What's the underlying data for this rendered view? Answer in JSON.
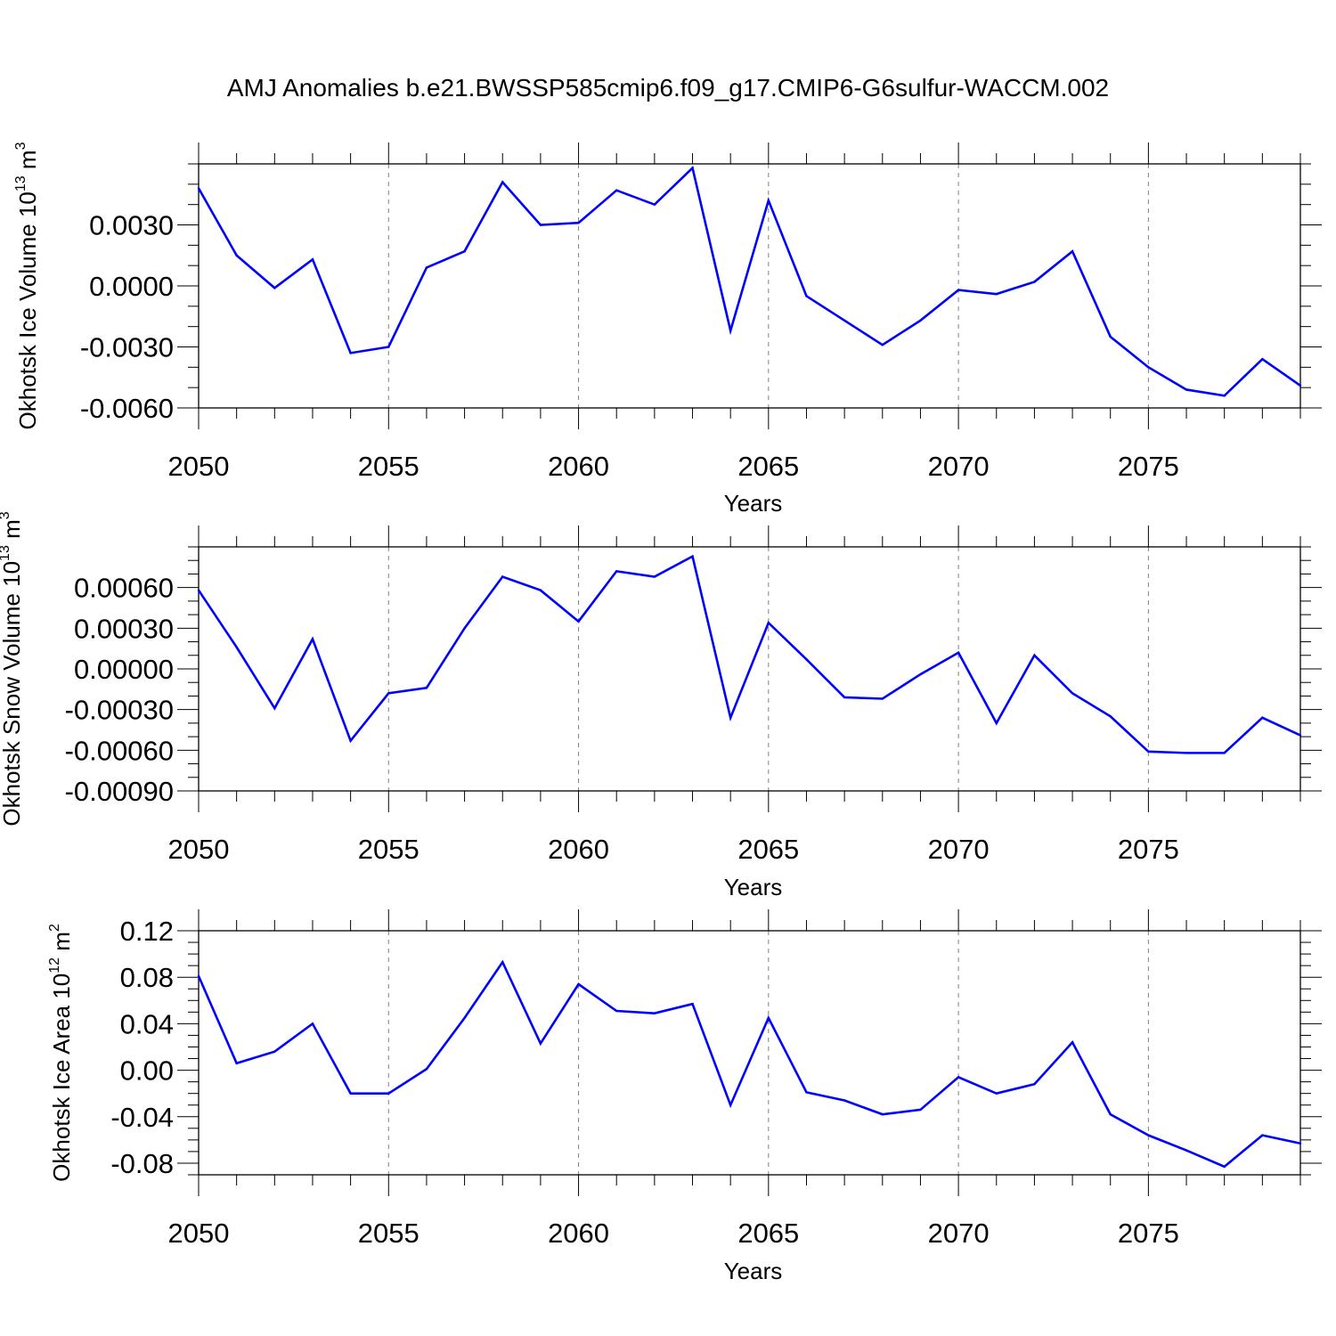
{
  "title": "AMJ Anomalies b.e21.BWSSP585cmip6.f09_g17.CMIP6-G6sulfur-WACCM.002",
  "colors": {
    "line": "#0000ff",
    "axis": "#000000",
    "grid": "#7f7f7f"
  },
  "chart_data": [
    {
      "type": "line",
      "ylabel": {
        "text": "Okhotsk Ice Volume 10",
        "sup": "13",
        "unit": " m",
        "unit_sup": "3"
      },
      "xlabel": "Years",
      "xlim": [
        2050,
        2079
      ],
      "ylim": [
        -0.006,
        0.006
      ],
      "yticks": [
        -0.006,
        -0.003,
        0.0,
        0.003
      ],
      "ytick_labels": [
        "-0.0060",
        "-0.0030",
        "0.0000",
        "0.0030"
      ],
      "yminor_step": 0.001,
      "xticks": [
        2050,
        2055,
        2060,
        2065,
        2070,
        2075
      ],
      "xtick_labels": [
        "2050",
        "2055",
        "2060",
        "2065",
        "2070",
        "2075"
      ],
      "grid_x": [
        2055,
        2060,
        2065,
        2070,
        2075
      ],
      "series": [
        {
          "x": [
            2050,
            2051,
            2052,
            2053,
            2054,
            2055,
            2056,
            2057,
            2058,
            2059,
            2060,
            2061,
            2062,
            2063,
            2064,
            2065,
            2066,
            2067,
            2068,
            2069,
            2070,
            2071,
            2072,
            2073,
            2074,
            2075,
            2076,
            2077,
            2078,
            2079
          ],
          "values": [
            0.0048,
            0.0015,
            -0.0001,
            0.0013,
            -0.0033,
            -0.003,
            0.0009,
            0.0017,
            0.0051,
            0.003,
            0.0031,
            0.0047,
            0.004,
            0.0058,
            -0.0022,
            0.0042,
            -0.0005,
            -0.0017,
            -0.0029,
            -0.0017,
            -0.0002,
            -0.0004,
            0.0002,
            0.0017,
            -0.0025,
            -0.004,
            -0.0051,
            -0.0054,
            -0.0036,
            -0.0049
          ]
        }
      ]
    },
    {
      "type": "line",
      "ylabel": {
        "text": "Okhotsk Snow Volume 10",
        "sup": "13",
        "unit": " m",
        "unit_sup": "3"
      },
      "xlabel": "Years",
      "xlim": [
        2050,
        2079
      ],
      "ylim": [
        -0.0009,
        0.0009
      ],
      "yticks": [
        -0.0009,
        -0.0006,
        -0.0003,
        0.0,
        0.0003,
        0.0006
      ],
      "ytick_labels": [
        "-0.00090",
        "-0.00060",
        "-0.00030",
        "0.00000",
        "0.00030",
        "0.00060"
      ],
      "yminor_step": 0.0001,
      "xticks": [
        2050,
        2055,
        2060,
        2065,
        2070,
        2075
      ],
      "xtick_labels": [
        "2050",
        "2055",
        "2060",
        "2065",
        "2070",
        "2075"
      ],
      "grid_x": [
        2055,
        2060,
        2065,
        2070,
        2075
      ],
      "series": [
        {
          "x": [
            2050,
            2051,
            2052,
            2053,
            2054,
            2055,
            2056,
            2057,
            2058,
            2059,
            2060,
            2061,
            2062,
            2063,
            2064,
            2065,
            2066,
            2067,
            2068,
            2069,
            2070,
            2071,
            2072,
            2073,
            2074,
            2075,
            2076,
            2077,
            2078,
            2079
          ],
          "values": [
            0.00058,
            0.00016,
            -0.00029,
            0.00022,
            -0.00053,
            -0.00018,
            -0.00014,
            0.0003,
            0.00068,
            0.00058,
            0.00035,
            0.00072,
            0.00068,
            0.00083,
            -0.00036,
            0.00034,
            7e-05,
            -0.00021,
            -0.00022,
            -4e-05,
            0.00012,
            -0.0004,
            0.0001,
            -0.00018,
            -0.00035,
            -0.00061,
            -0.00062,
            -0.00062,
            -0.00036,
            -0.00049
          ]
        }
      ]
    },
    {
      "type": "line",
      "ylabel": {
        "text": "Okhotsk Ice Area 10",
        "sup": "12",
        "unit": " m",
        "unit_sup": "2"
      },
      "xlabel": "Years",
      "xlim": [
        2050,
        2079
      ],
      "ylim": [
        -0.09,
        0.12
      ],
      "yticks": [
        -0.08,
        -0.04,
        0.0,
        0.04,
        0.08,
        0.12
      ],
      "ytick_labels": [
        "-0.08",
        "-0.04",
        "0.00",
        "0.04",
        "0.08",
        "0.12"
      ],
      "yminor_step": 0.01,
      "xticks": [
        2050,
        2055,
        2060,
        2065,
        2070,
        2075
      ],
      "xtick_labels": [
        "2050",
        "2055",
        "2060",
        "2065",
        "2070",
        "2075"
      ],
      "grid_x": [
        2055,
        2060,
        2065,
        2070,
        2075
      ],
      "series": [
        {
          "x": [
            2050,
            2051,
            2052,
            2053,
            2054,
            2055,
            2056,
            2057,
            2058,
            2059,
            2060,
            2061,
            2062,
            2063,
            2064,
            2065,
            2066,
            2067,
            2068,
            2069,
            2070,
            2071,
            2072,
            2073,
            2074,
            2075,
            2076,
            2077,
            2078,
            2079
          ],
          "values": [
            0.081,
            0.006,
            0.016,
            0.04,
            -0.02,
            -0.02,
            0.001,
            0.045,
            0.093,
            0.023,
            0.074,
            0.051,
            0.049,
            0.057,
            -0.03,
            0.045,
            -0.019,
            -0.026,
            -0.038,
            -0.034,
            -0.006,
            -0.02,
            -0.012,
            0.024,
            -0.038,
            -0.056,
            -0.069,
            -0.083,
            -0.056,
            -0.063
          ]
        }
      ]
    }
  ]
}
